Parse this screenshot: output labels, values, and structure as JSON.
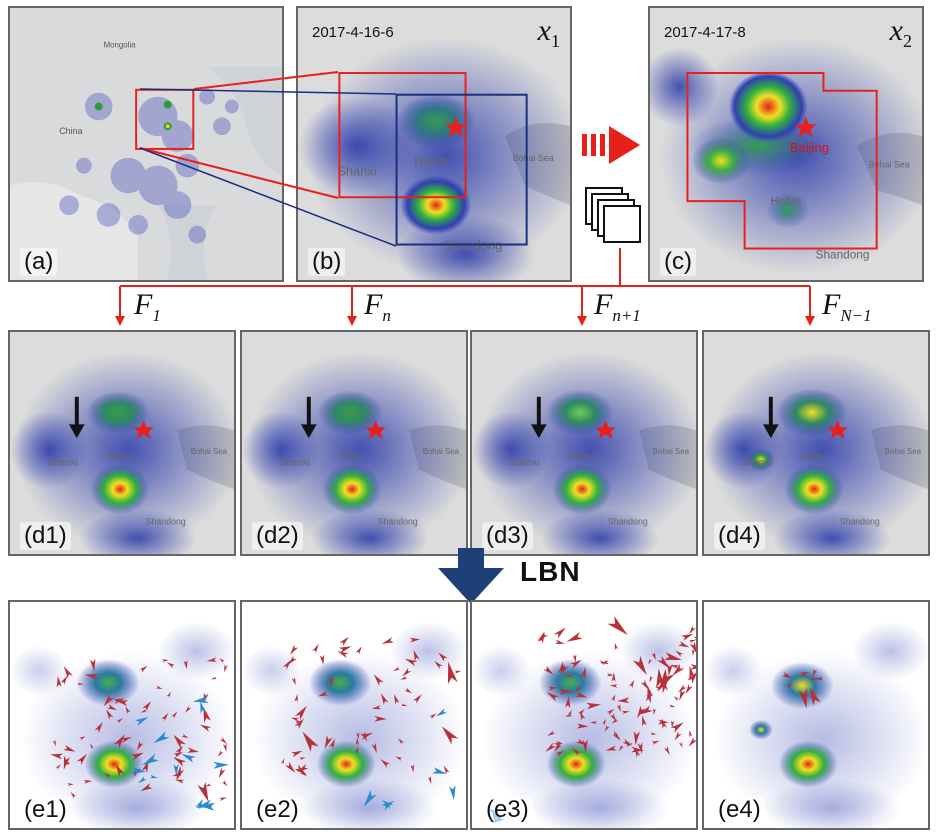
{
  "panels": {
    "a": {
      "label": "(a)"
    },
    "b": {
      "label": "(b)",
      "date": "2017-4-16-6",
      "var": "x",
      "var_sub": "1"
    },
    "c": {
      "label": "(c)",
      "date": "2017-4-17-8",
      "var": "x",
      "var_sub": "2",
      "city": "Beijing"
    },
    "d": [
      {
        "label": "(d1)"
      },
      {
        "label": "(d2)"
      },
      {
        "label": "(d3)"
      },
      {
        "label": "(d4)"
      }
    ],
    "e": [
      {
        "label": "(e1)"
      },
      {
        "label": "(e2)"
      },
      {
        "label": "(e3)"
      },
      {
        "label": "(e4)"
      }
    ]
  },
  "map_text": {
    "china": "China",
    "mongolia": "Mongolia",
    "shanxi": "Shanxi",
    "hebei": "Hebei",
    "bohai": "Bohai Sea",
    "shandong": "Shandong",
    "beijing_short": "Beijing"
  },
  "filters": [
    {
      "name": "F",
      "sub": "1"
    },
    {
      "name": "F",
      "sub": "n"
    },
    {
      "name": "F",
      "sub": "n+1"
    },
    {
      "name": "F",
      "sub": "N−1"
    }
  ],
  "model_label": "LBN",
  "colors": {
    "red": "#e8201c",
    "navy": "#1f3f77",
    "blue_box": "#1a2e80"
  }
}
